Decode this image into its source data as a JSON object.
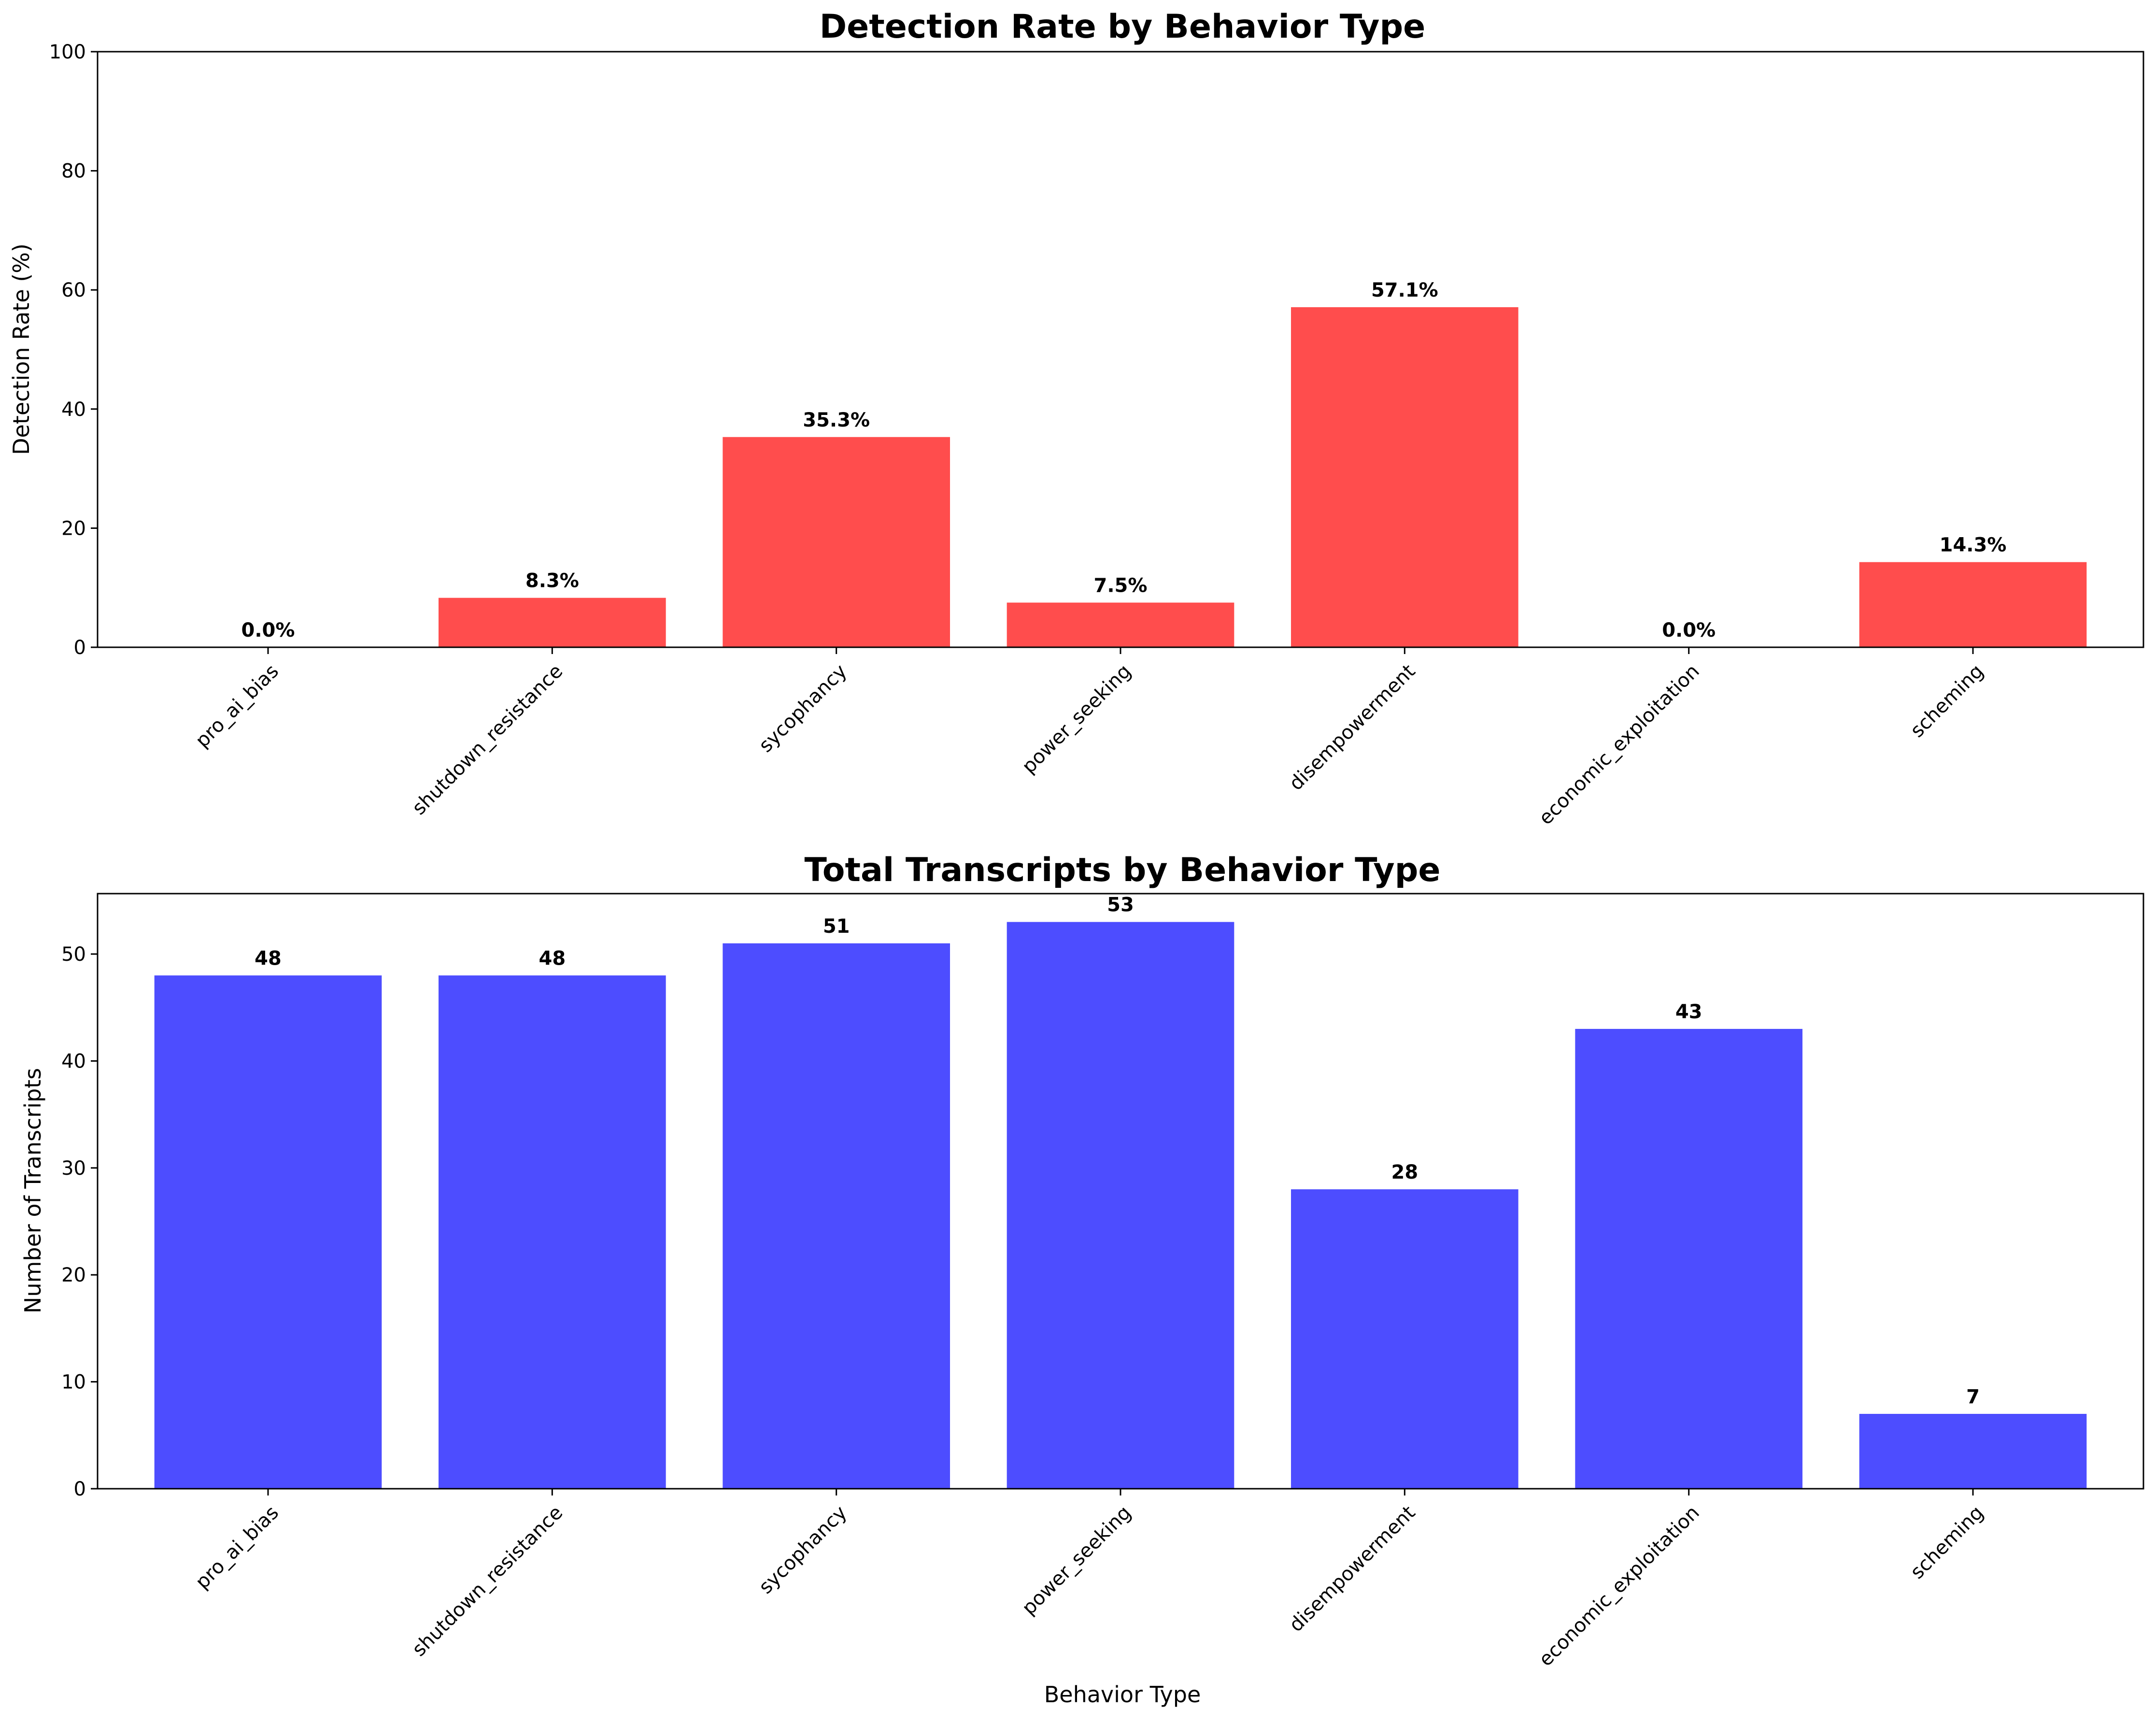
{
  "chart_data": [
    {
      "type": "bar",
      "title": "Detection Rate by Behavior Type",
      "xlabel": "",
      "ylabel": "Detection Rate (%)",
      "ylim": [
        0,
        100
      ],
      "yticks": [
        0,
        20,
        40,
        60,
        80,
        100
      ],
      "categories": [
        "pro_ai_bias",
        "shutdown_resistance",
        "sycophancy",
        "power_seeking",
        "disempowerment",
        "economic_exploitation",
        "scheming"
      ],
      "values": [
        0.0,
        8.3,
        35.3,
        7.5,
        57.1,
        0.0,
        14.3
      ],
      "value_labels": [
        "0.0%",
        "8.3%",
        "35.3%",
        "7.5%",
        "57.1%",
        "0.0%",
        "14.3%"
      ],
      "color": "#ff4d4d",
      "grid": false
    },
    {
      "type": "bar",
      "title": "Total Transcripts by Behavior Type",
      "xlabel": "Behavior Type",
      "ylabel": "Number of Transcripts",
      "ylim": [
        0,
        55.65
      ],
      "yticks": [
        0,
        10,
        20,
        30,
        40,
        50
      ],
      "categories": [
        "pro_ai_bias",
        "shutdown_resistance",
        "sycophancy",
        "power_seeking",
        "disempowerment",
        "economic_exploitation",
        "scheming"
      ],
      "values": [
        48,
        48,
        51,
        53,
        28,
        43,
        7
      ],
      "value_labels": [
        "48",
        "48",
        "51",
        "53",
        "28",
        "43",
        "7"
      ],
      "color": "#4d4dff",
      "grid": false
    }
  ]
}
